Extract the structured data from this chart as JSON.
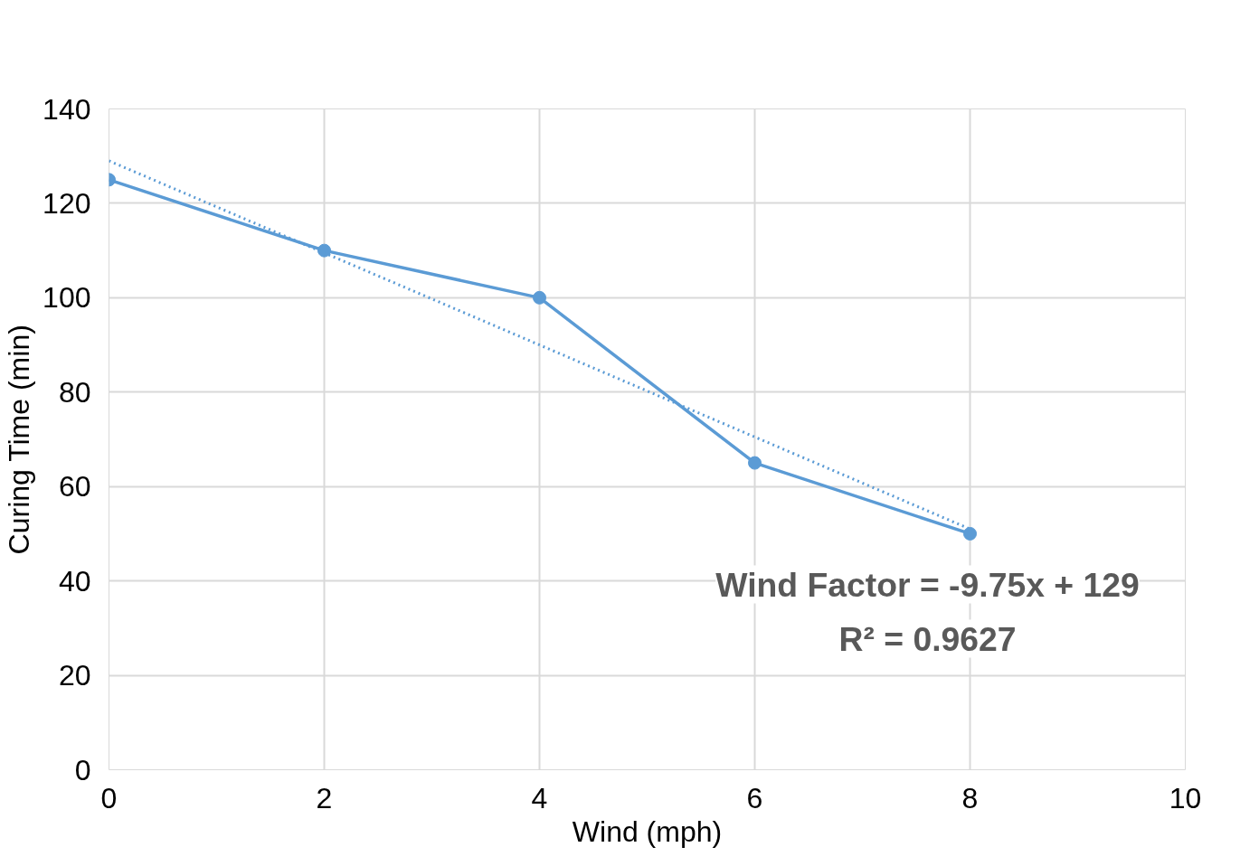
{
  "chart_data": {
    "type": "line",
    "xlabel": "Wind (mph)",
    "ylabel": "Curing Time (min)",
    "xlim": [
      0,
      10
    ],
    "xticks": [
      0,
      2,
      4,
      6,
      8,
      10
    ],
    "ylim": [
      0,
      140
    ],
    "yticks": [
      0,
      20,
      40,
      60,
      80,
      100,
      120,
      140
    ],
    "grid": true,
    "marker": "circle",
    "line_style": "solid",
    "series": [
      {
        "color": "#5b9bd5",
        "x": [
          0,
          2,
          4,
          6,
          8
        ],
        "values": [
          125,
          110,
          100,
          65,
          50
        ]
      },
      {
        "type": "line",
        "color": "#5b9bd5",
        "x": [
          0,
          8
        ],
        "values": [
          129,
          51
        ],
        "line_style": "dotted",
        "marker": "none"
      }
    ],
    "annotations": [
      "Wind Factor = -9.75x + 129",
      "R² = 0.9627"
    ]
  }
}
